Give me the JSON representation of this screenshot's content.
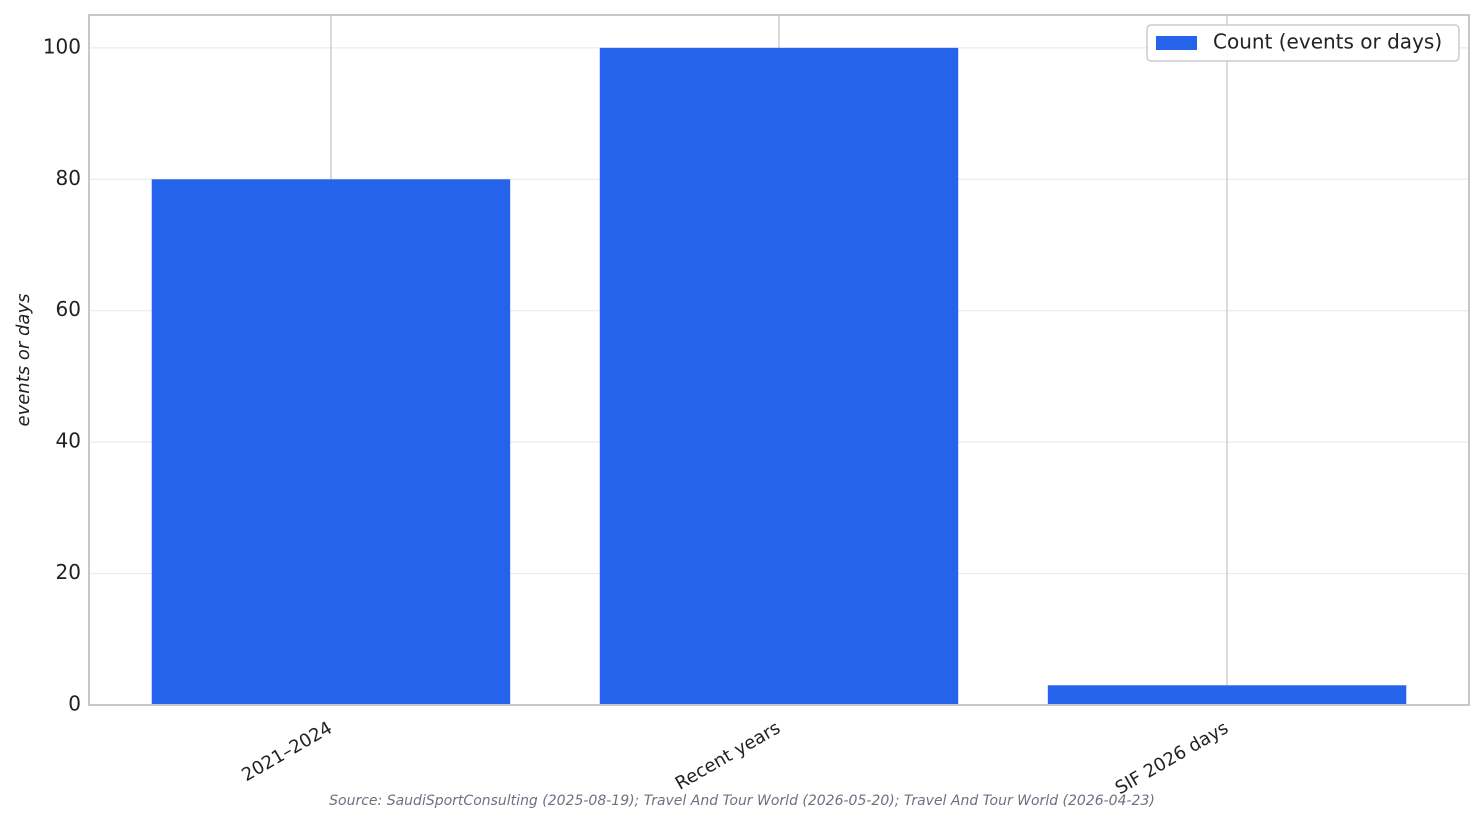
{
  "chart_data": {
    "type": "bar",
    "categories": [
      "2021–2024",
      "Recent years",
      "SIF 2026 days"
    ],
    "series": [
      {
        "name": "Count (events or days)",
        "color": "#2563eb",
        "values": [
          80,
          100,
          3
        ]
      }
    ],
    "y_label": "events or days",
    "source": "Source: SaudiSportConsulting (2025-08-19); Travel And Tour World (2026-05-20); Travel And Tour World (2026-04-23)",
    "ylim": [
      0,
      105
    ],
    "yticks": [
      0,
      20,
      40,
      60,
      80,
      100
    ],
    "grid": true,
    "legend": "upper right"
  }
}
